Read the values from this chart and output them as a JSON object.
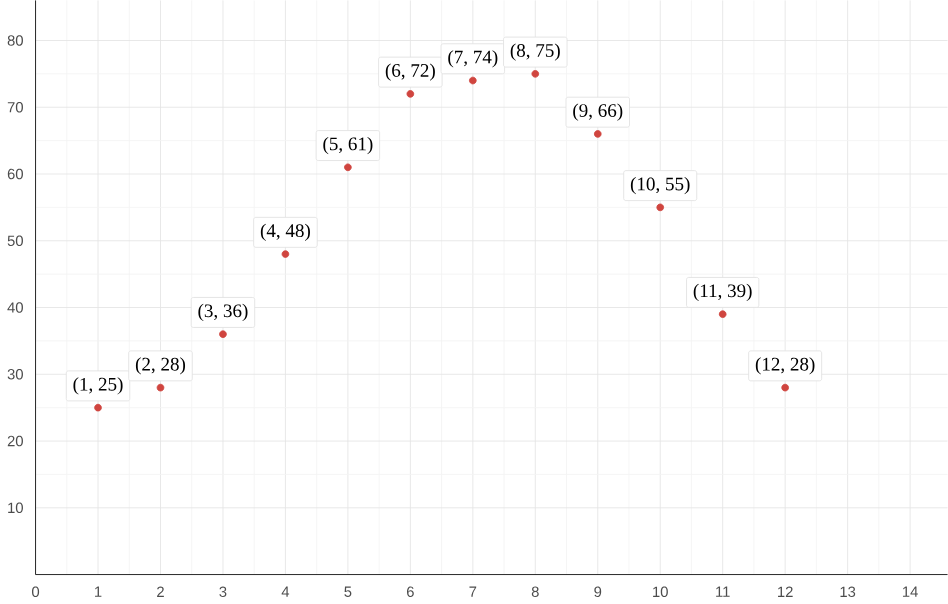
{
  "chart_data": {
    "type": "scatter",
    "x": [
      1,
      2,
      3,
      4,
      5,
      6,
      7,
      8,
      9,
      10,
      11,
      12
    ],
    "series": [
      {
        "color": "#d0453f",
        "values": [
          25,
          28,
          36,
          48,
          61,
          72,
          74,
          75,
          66,
          55,
          39,
          28
        ]
      }
    ],
    "xlim": [
      0,
      14.6
    ],
    "ylim": [
      0,
      86
    ],
    "xticks": [
      0,
      1,
      2,
      3,
      4,
      5,
      6,
      7,
      8,
      9,
      10,
      11,
      12,
      13,
      14
    ],
    "yticks": [
      10,
      20,
      30,
      40,
      50,
      60,
      70,
      80
    ],
    "grid": true,
    "marker": "circle",
    "annotations": [
      {
        "text": "(1, 25)",
        "x": 1,
        "y": 25
      },
      {
        "text": "(2, 28)",
        "x": 2,
        "y": 28
      },
      {
        "text": "(3, 36)",
        "x": 3,
        "y": 36
      },
      {
        "text": "(4, 48)",
        "x": 4,
        "y": 48
      },
      {
        "text": "(5, 61)",
        "x": 5,
        "y": 61
      },
      {
        "text": "(6, 72)",
        "x": 6,
        "y": 72
      },
      {
        "text": "(7, 74)",
        "x": 7,
        "y": 74
      },
      {
        "text": "(8, 75)",
        "x": 8,
        "y": 75
      },
      {
        "text": "(9, 66)",
        "x": 9,
        "y": 66
      },
      {
        "text": "(10, 55)",
        "x": 10,
        "y": 55
      },
      {
        "text": "(11, 39)",
        "x": 11,
        "y": 39
      },
      {
        "text": "(12, 28)",
        "x": 12,
        "y": 28
      }
    ]
  }
}
